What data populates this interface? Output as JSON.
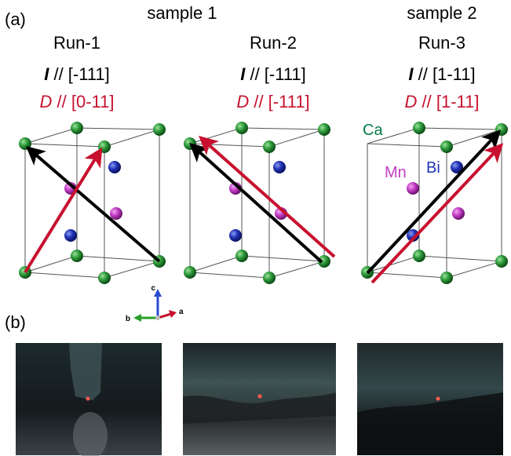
{
  "panel_a": {
    "label": "(a)",
    "samples": [
      {
        "name": "sample 1"
      },
      {
        "name": "sample 2"
      }
    ],
    "runs": [
      {
        "name": "Run-1",
        "current": {
          "symbol": "I",
          "direction": "// [-111]"
        },
        "d": {
          "symbol": "D",
          "direction": "// [0-11]"
        }
      },
      {
        "name": "Run-2",
        "current": {
          "symbol": "I",
          "direction": "// [-111]"
        },
        "d": {
          "symbol": "D",
          "direction": "// [-111]"
        }
      },
      {
        "name": "Run-3",
        "current": {
          "symbol": "I",
          "direction": "// [1-11]"
        },
        "d": {
          "symbol": "D",
          "direction": "// [1-11]"
        }
      }
    ],
    "atoms": {
      "ca": "Ca",
      "mn": "Mn",
      "bi": "Bi"
    },
    "axes": {
      "c": "c",
      "b": "b",
      "a": "a"
    }
  },
  "panel_b": {
    "label": "(b)"
  }
}
